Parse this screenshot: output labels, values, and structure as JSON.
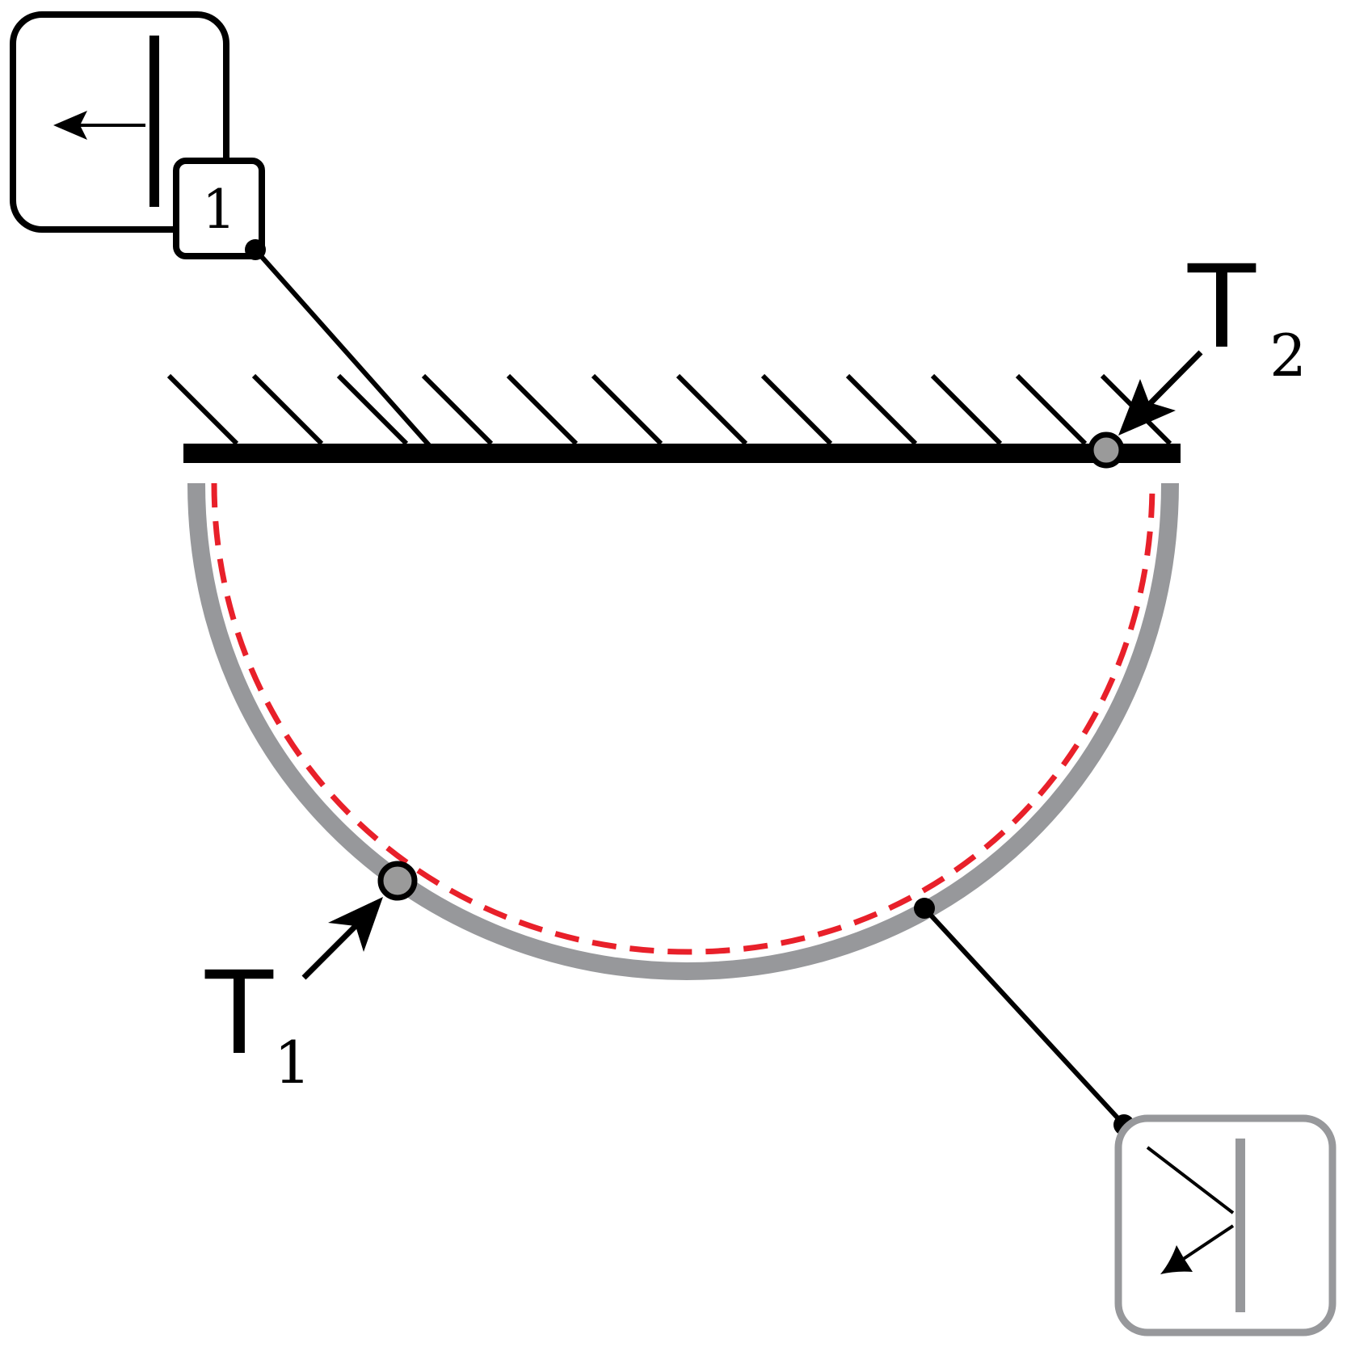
{
  "diagram": {
    "badge_number": "1",
    "label_t1": {
      "main": "T",
      "sub": "1"
    },
    "label_t2": {
      "main": "T",
      "sub": "2"
    },
    "colors": {
      "ink": "#000000",
      "gray": "#97989b",
      "dot_gray": "#9a9a9a",
      "dashed_red": "#e8202a",
      "background": "#ffffff"
    },
    "icons": {
      "top_left_box": "arrow-left-from-wall-icon",
      "bottom_right_box": "arrow-down-left-reflect-icon"
    }
  }
}
